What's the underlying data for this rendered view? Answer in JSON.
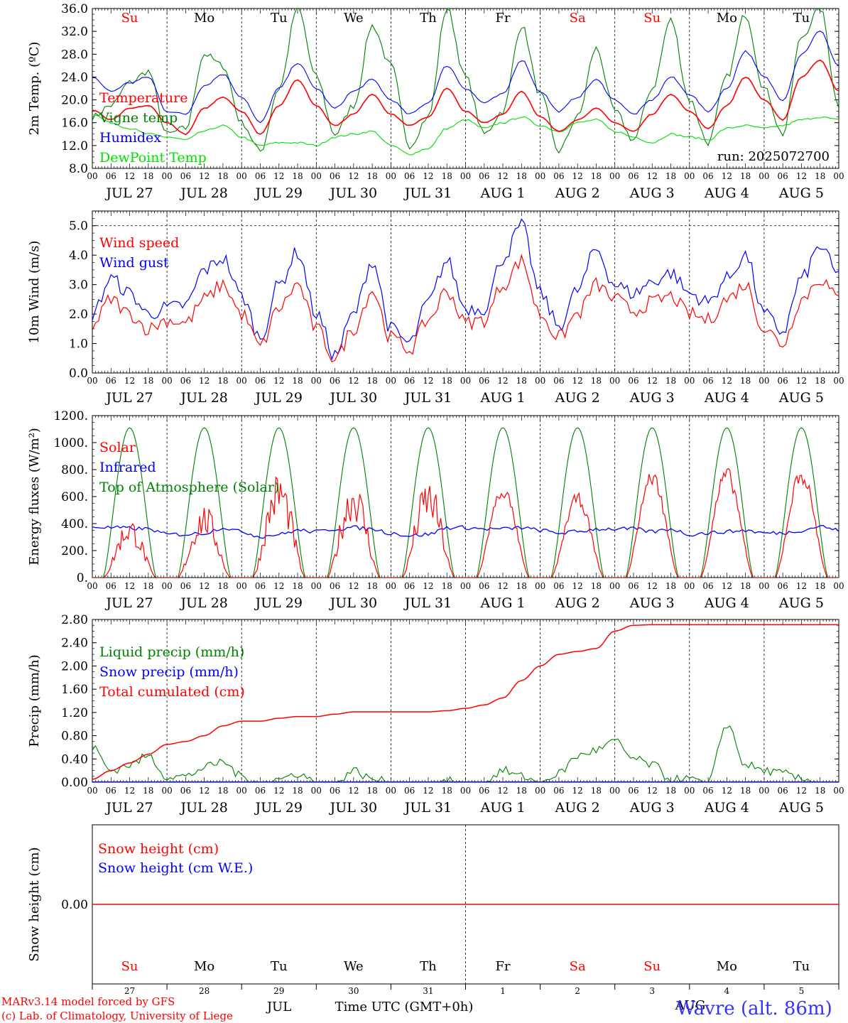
{
  "colors": {
    "red": "#ff0000",
    "green": "#008000",
    "blue": "#0000ff",
    "lightgreen": "#00e000",
    "black": "#000000",
    "weekend": "#ff0000"
  },
  "days": {
    "names": [
      "Su",
      "Mo",
      "Tu",
      "We",
      "Th",
      "Fr",
      "Sa",
      "Su",
      "Mo",
      "Tu"
    ],
    "weekend": [
      true,
      false,
      false,
      false,
      false,
      false,
      true,
      true,
      false,
      false
    ],
    "date_labels": [
      "JUL 27",
      "JUL 28",
      "JUL 29",
      "JUL 30",
      "JUL 31",
      "AUG  1",
      "AUG  2",
      "AUG  3",
      "AUG  4",
      "AUG  5"
    ],
    "day_numbers": [
      "27",
      "28",
      "29",
      "30",
      "31",
      "1",
      "2",
      "3",
      "4",
      "5"
    ],
    "hour_ticks": [
      "00",
      "06",
      "12",
      "18"
    ],
    "final_hour": "00"
  },
  "footer": {
    "credit_line1": "MARv3.14 model forced by GFS",
    "credit_line2": "(c) Lab. of Climatology, University of Liege",
    "month_jul": "JUL",
    "month_aug": "AUG",
    "axis_label": "Time UTC (GMT+0h)",
    "station": "Wavre (alt. 86m)"
  },
  "chart_data": [
    {
      "type": "line",
      "id": "temperature",
      "ylabel": "2m Temp. (ºC)",
      "ylim": [
        8.0,
        36.0
      ],
      "yticks": [
        "8.0",
        "12.0",
        "16.0",
        "20.0",
        "24.0",
        "28.0",
        "32.0",
        "36.0"
      ],
      "ytick_values": [
        8,
        12,
        16,
        20,
        24,
        28,
        32,
        36
      ],
      "run_label": "run: 2025072700",
      "hourly_resolution_h": 6,
      "series": [
        {
          "name": "Temperature",
          "color": "#ff0000",
          "values": [
            18.2,
            16.5,
            18.5,
            19.0,
            16.0,
            14.0,
            18.5,
            20.5,
            18.0,
            14.0,
            19.0,
            23.5,
            19.0,
            15.5,
            17.5,
            21.0,
            17.5,
            15.5,
            17.0,
            22.0,
            18.0,
            16.0,
            17.5,
            21.5,
            17.0,
            14.5,
            16.5,
            18.5,
            16.0,
            14.5,
            17.5,
            21.0,
            18.0,
            15.0,
            19.0,
            24.0,
            20.0,
            16.5,
            24.0,
            27.0,
            21.5
          ]
        },
        {
          "name": "Vigne temp",
          "color": "#008000",
          "values": [
            17.0,
            19.0,
            23.0,
            25.0,
            14.0,
            15.0,
            28.0,
            26.0,
            16.0,
            11.0,
            22.0,
            36.0,
            24.0,
            14.0,
            19.0,
            33.0,
            26.0,
            12.0,
            17.0,
            36.0,
            24.0,
            14.0,
            18.0,
            33.0,
            21.0,
            11.0,
            17.0,
            29.0,
            18.0,
            13.0,
            22.0,
            34.0,
            20.0,
            12.5,
            24.0,
            35.0,
            22.0,
            14.0,
            31.0,
            36.0,
            19.0
          ]
        },
        {
          "name": "Humidex",
          "color": "#0000ff",
          "values": [
            24.0,
            21.5,
            23.0,
            24.0,
            18.0,
            17.5,
            22.5,
            24.5,
            20.5,
            16.0,
            22.0,
            26.5,
            22.0,
            18.5,
            21.5,
            23.5,
            20.0,
            17.5,
            19.5,
            26.0,
            22.0,
            19.5,
            21.0,
            27.0,
            21.5,
            18.0,
            20.5,
            23.5,
            20.0,
            17.5,
            20.0,
            24.0,
            21.0,
            18.0,
            22.0,
            28.5,
            24.0,
            20.0,
            28.0,
            32.0,
            26.0
          ]
        },
        {
          "name": "DewPoint Temp",
          "color": "#00e000",
          "values": [
            17.5,
            16.0,
            15.0,
            14.0,
            13.5,
            13.0,
            14.5,
            15.5,
            13.5,
            12.0,
            12.5,
            12.5,
            12.0,
            13.5,
            14.0,
            14.5,
            12.0,
            10.5,
            11.5,
            15.0,
            16.5,
            15.0,
            16.0,
            17.0,
            15.5,
            14.5,
            16.0,
            16.5,
            14.5,
            13.5,
            12.5,
            14.0,
            13.5,
            13.0,
            15.0,
            15.5,
            15.0,
            15.5,
            16.5,
            17.0,
            16.5
          ]
        }
      ]
    },
    {
      "type": "line",
      "id": "wind",
      "ylabel": "10m Wind (m/s)",
      "ylim": [
        0.0,
        5.5
      ],
      "yticks": [
        "0.0",
        "1.0",
        "2.0",
        "3.0",
        "4.0",
        "5.0"
      ],
      "ytick_values": [
        0,
        1,
        2,
        3,
        4,
        5
      ],
      "dashed_y": 5.0,
      "hourly_resolution_h": 6,
      "series": [
        {
          "name": "Wind speed",
          "color": "#ff0000",
          "values": [
            1.6,
            2.5,
            2.0,
            1.5,
            1.8,
            1.7,
            2.5,
            3.0,
            2.0,
            0.9,
            2.2,
            3.0,
            1.5,
            0.5,
            1.5,
            2.8,
            1.2,
            0.8,
            1.8,
            2.8,
            1.7,
            1.8,
            3.0,
            3.8,
            2.0,
            1.2,
            2.0,
            3.0,
            2.5,
            2.1,
            2.4,
            2.6,
            2.0,
            1.8,
            2.5,
            3.0,
            1.5,
            1.0,
            2.5,
            3.2,
            2.5
          ]
        },
        {
          "name": "Wind gust",
          "color": "#0000ff",
          "values": [
            2.0,
            3.2,
            2.7,
            2.0,
            2.2,
            2.3,
            3.5,
            3.9,
            2.6,
            1.2,
            3.0,
            4.1,
            2.0,
            0.6,
            2.0,
            3.8,
            1.5,
            1.0,
            2.4,
            3.8,
            2.2,
            2.2,
            3.9,
            5.0,
            2.7,
            1.6,
            2.8,
            4.2,
            3.0,
            2.7,
            3.1,
            3.4,
            2.7,
            2.4,
            3.2,
            4.0,
            2.0,
            1.4,
            3.2,
            4.3,
            3.3
          ]
        }
      ]
    },
    {
      "type": "line",
      "id": "energy",
      "ylabel": "Energy fluxes (W/m²)",
      "ylim": [
        0,
        1200
      ],
      "yticks": [
        "0.",
        "200.",
        "400.",
        "600.",
        "800.",
        "1000.",
        "1200."
      ],
      "ytick_values": [
        0,
        200,
        400,
        600,
        800,
        1000,
        1200
      ],
      "solar_peaks_by_day": [
        450,
        550,
        800,
        750,
        740,
        690,
        630,
        800,
        820,
        820
      ],
      "toa_solar_peak": 1110,
      "series": [
        {
          "name": "Solar",
          "color": "#ff0000"
        },
        {
          "name": "Infrared",
          "color": "#0000ff",
          "values": [
            375,
            370,
            365,
            360,
            320,
            320,
            330,
            370,
            340,
            305,
            320,
            350,
            340,
            360,
            370,
            360,
            330,
            310,
            320,
            370,
            370,
            360,
            360,
            370,
            350,
            330,
            340,
            360,
            360,
            360,
            340,
            360,
            320,
            330,
            340,
            350,
            330,
            330,
            350,
            380,
            350
          ]
        },
        {
          "name": "Top of Atmosphere (Solar)",
          "color": "#008000"
        }
      ]
    },
    {
      "type": "line",
      "id": "precip",
      "ylabel": "Precip (mm/h)",
      "ylim": [
        0.0,
        2.8
      ],
      "yticks": [
        "0.00",
        "0.40",
        "0.80",
        "1.20",
        "1.60",
        "2.00",
        "2.40",
        "2.80"
      ],
      "ytick_values": [
        0,
        0.4,
        0.8,
        1.2,
        1.6,
        2.0,
        2.4,
        2.8
      ],
      "hourly_resolution_h": 6,
      "series": [
        {
          "name": "Liquid precip (mm/h)",
          "color": "#008000",
          "values": [
            0.6,
            0.2,
            0.3,
            0.45,
            0.1,
            0.1,
            0.25,
            0.35,
            0.1,
            0.0,
            0.05,
            0.15,
            0.0,
            0.0,
            0.2,
            0.05,
            0.0,
            0.0,
            0.0,
            0.05,
            0.0,
            0.0,
            0.2,
            0.1,
            0.0,
            0.15,
            0.45,
            0.55,
            0.7,
            0.4,
            0.3,
            0.05,
            0.05,
            0.0,
            1.0,
            0.3,
            0.2,
            0.15,
            0.05,
            0.0,
            0.0
          ]
        },
        {
          "name": "Snow precip (mm/h)",
          "color": "#0000ff",
          "values": [
            0,
            0,
            0,
            0,
            0,
            0,
            0,
            0,
            0,
            0,
            0,
            0,
            0,
            0,
            0,
            0,
            0,
            0,
            0,
            0,
            0,
            0,
            0,
            0,
            0,
            0,
            0,
            0,
            0,
            0,
            0,
            0,
            0,
            0,
            0,
            0,
            0,
            0,
            0,
            0,
            0
          ]
        },
        {
          "name": "Total cumulated (cm)",
          "color": "#ff0000",
          "values": [
            0.05,
            0.2,
            0.33,
            0.48,
            0.65,
            0.7,
            0.8,
            0.97,
            1.05,
            1.05,
            1.1,
            1.13,
            1.13,
            1.17,
            1.21,
            1.21,
            1.21,
            1.21,
            1.21,
            1.23,
            1.27,
            1.33,
            1.45,
            1.75,
            2.0,
            2.2,
            2.25,
            2.3,
            2.6,
            2.7,
            2.71,
            2.71,
            2.71,
            2.71,
            2.71,
            2.71,
            2.71,
            2.71,
            2.71,
            2.71,
            2.71
          ]
        }
      ]
    },
    {
      "type": "line",
      "id": "snow",
      "ylabel": "Snow height (cm)",
      "ylim": [
        -1,
        1
      ],
      "yticks": [
        "0.00"
      ],
      "ytick_values": [
        0
      ],
      "series": [
        {
          "name": "Snow height (cm)",
          "color": "#ff0000",
          "values": [
            0,
            0
          ]
        },
        {
          "name": "Snow height (cm W.E.)",
          "color": "#0000ff",
          "values": []
        }
      ]
    }
  ]
}
